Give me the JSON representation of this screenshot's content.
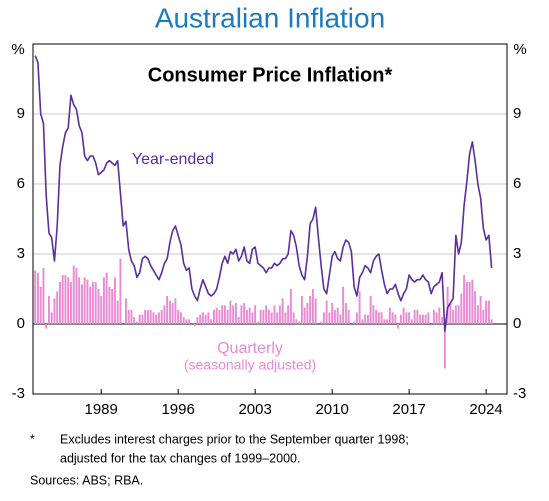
{
  "header": {
    "title": "Australian Inflation"
  },
  "chart_data": {
    "type": "bar_line",
    "title": "Consumer Price Inflation*",
    "y_unit": "%",
    "x": [
      1983,
      1983.25,
      1983.5,
      1983.75,
      1984,
      1984.25,
      1984.5,
      1984.75,
      1985,
      1985.25,
      1985.5,
      1985.75,
      1986,
      1986.25,
      1986.5,
      1986.75,
      1987,
      1987.25,
      1987.5,
      1987.75,
      1988,
      1988.25,
      1988.5,
      1988.75,
      1989,
      1989.25,
      1989.5,
      1989.75,
      1990,
      1990.25,
      1990.5,
      1990.75,
      1991,
      1991.25,
      1991.5,
      1991.75,
      1992,
      1992.25,
      1992.5,
      1992.75,
      1993,
      1993.25,
      1993.5,
      1993.75,
      1994,
      1994.25,
      1994.5,
      1994.75,
      1995,
      1995.25,
      1995.5,
      1995.75,
      1996,
      1996.25,
      1996.5,
      1996.75,
      1997,
      1997.25,
      1997.5,
      1997.75,
      1998,
      1998.25,
      1998.5,
      1998.75,
      1999,
      1999.25,
      1999.5,
      1999.75,
      2000,
      2000.25,
      2000.5,
      2000.75,
      2001,
      2001.25,
      2001.5,
      2001.75,
      2002,
      2002.25,
      2002.5,
      2002.75,
      2003,
      2003.25,
      2003.5,
      2003.75,
      2004,
      2004.25,
      2004.5,
      2004.75,
      2005,
      2005.25,
      2005.5,
      2005.75,
      2006,
      2006.25,
      2006.5,
      2006.75,
      2007,
      2007.25,
      2007.5,
      2007.75,
      2008,
      2008.25,
      2008.5,
      2008.75,
      2009,
      2009.25,
      2009.5,
      2009.75,
      2010,
      2010.25,
      2010.5,
      2010.75,
      2011,
      2011.25,
      2011.5,
      2011.75,
      2012,
      2012.25,
      2012.5,
      2012.75,
      2013,
      2013.25,
      2013.5,
      2013.75,
      2014,
      2014.25,
      2014.5,
      2014.75,
      2015,
      2015.25,
      2015.5,
      2015.75,
      2016,
      2016.25,
      2016.5,
      2016.75,
      2017,
      2017.25,
      2017.5,
      2017.75,
      2018,
      2018.25,
      2018.5,
      2018.75,
      2019,
      2019.25,
      2019.5,
      2019.75,
      2020,
      2020.25,
      2020.5,
      2020.75,
      2021,
      2021.25,
      2021.5,
      2021.75,
      2022,
      2022.25,
      2022.5,
      2022.75,
      2023,
      2023.25,
      2023.5,
      2023.75,
      2024,
      2024.25,
      2024.5
    ],
    "series": [
      {
        "name": "Quarterly",
        "sublabel": "(seasonally adjusted)",
        "kind": "bar",
        "color": "#e98ad3",
        "values": [
          2.3,
          2.2,
          1.6,
          2.4,
          -0.2,
          1.2,
          0.5,
          1.1,
          1.4,
          1.8,
          2.1,
          2.1,
          2.0,
          1.8,
          2.5,
          2.4,
          2.0,
          1.7,
          2.0,
          1.9,
          1.6,
          1.8,
          1.8,
          1.5,
          1.2,
          2.0,
          2.2,
          1.6,
          1.5,
          2.0,
          1.0,
          2.8,
          0.0,
          1.1,
          0.6,
          0.6,
          0.3,
          0.1,
          0.4,
          0.4,
          0.6,
          0.6,
          0.6,
          0.5,
          0.4,
          0.5,
          0.6,
          0.8,
          1.2,
          1.0,
          0.9,
          1.1,
          0.6,
          0.5,
          0.3,
          0.2,
          0.2,
          0.0,
          -0.1,
          0.3,
          0.4,
          0.5,
          0.4,
          0.5,
          0.2,
          0.6,
          0.7,
          0.6,
          0.8,
          0.8,
          0.6,
          1.0,
          0.8,
          0.9,
          0.3,
          0.8,
          0.9,
          0.6,
          0.7,
          0.5,
          0.8,
          0.1,
          0.6,
          0.6,
          0.8,
          0.6,
          0.5,
          0.8,
          0.5,
          0.8,
          1.1,
          0.5,
          0.8,
          1.5,
          0.5,
          0.2,
          0.1,
          1.2,
          0.7,
          0.9,
          1.2,
          1.5,
          1.1,
          0.0,
          0.1,
          0.5,
          1.0,
          0.5,
          0.9,
          0.6,
          0.7,
          0.4,
          1.6,
          0.9,
          0.6,
          0.0,
          0.1,
          0.5,
          1.4,
          0.2,
          0.4,
          0.4,
          1.2,
          0.8,
          0.6,
          0.5,
          0.5,
          0.2,
          0.2,
          0.7,
          0.5,
          0.4,
          -0.2,
          0.4,
          0.7,
          0.5,
          0.5,
          0.2,
          0.6,
          0.6,
          0.4,
          0.4,
          0.4,
          0.5,
          0.0,
          0.6,
          0.5,
          0.7,
          0.3,
          -1.9,
          1.6,
          0.9,
          0.6,
          0.8,
          0.8,
          1.3,
          2.1,
          1.8,
          1.8,
          1.9,
          1.4,
          0.8,
          1.2,
          0.6,
          1.0,
          1.0,
          0.2
        ]
      },
      {
        "name": "Year-ended",
        "kind": "line",
        "color": "#5b2d9e",
        "values": [
          11.5,
          11.2,
          9.0,
          8.6,
          5.5,
          3.9,
          3.7,
          2.7,
          4.2,
          6.8,
          7.6,
          8.2,
          8.4,
          9.8,
          9.4,
          9.2,
          8.5,
          8.2,
          7.2,
          7.0,
          7.2,
          7.2,
          6.9,
          6.4,
          6.5,
          6.6,
          6.9,
          7.0,
          6.9,
          6.8,
          7.0,
          5.6,
          4.2,
          4.4,
          3.2,
          2.7,
          2.5,
          2.0,
          2.2,
          2.8,
          2.9,
          2.8,
          2.5,
          2.3,
          2.1,
          1.9,
          2.2,
          2.6,
          2.8,
          3.5,
          4.0,
          4.2,
          3.8,
          3.4,
          2.6,
          2.3,
          2.4,
          1.5,
          1.2,
          1.0,
          1.5,
          1.9,
          1.6,
          1.3,
          1.2,
          1.3,
          1.5,
          2.0,
          2.6,
          2.9,
          2.6,
          3.1,
          3.0,
          3.2,
          2.7,
          2.9,
          3.3,
          2.7,
          2.6,
          3.2,
          3.3,
          2.6,
          2.5,
          2.4,
          2.2,
          2.4,
          2.4,
          2.6,
          2.5,
          2.6,
          2.8,
          2.8,
          3.0,
          4.0,
          3.8,
          3.3,
          2.5,
          2.1,
          1.9,
          2.9,
          4.3,
          4.5,
          5.0,
          3.7,
          2.5,
          1.5,
          1.3,
          2.1,
          2.9,
          3.1,
          2.8,
          2.7,
          3.3,
          3.6,
          3.5,
          3.1,
          1.6,
          1.2,
          2.0,
          2.2,
          2.5,
          2.4,
          2.2,
          2.7,
          2.9,
          3.0,
          2.3,
          1.7,
          1.3,
          1.5,
          1.5,
          1.7,
          1.3,
          1.0,
          1.3,
          1.5,
          2.1,
          1.9,
          1.8,
          1.9,
          1.9,
          2.1,
          1.9,
          1.8,
          1.3,
          1.6,
          1.7,
          1.8,
          2.2,
          -0.3,
          0.7,
          0.9,
          1.1,
          3.8,
          3.0,
          3.5,
          5.1,
          6.1,
          7.3,
          7.8,
          7.0,
          6.0,
          5.4,
          4.1,
          3.6,
          3.8,
          2.4
        ]
      }
    ],
    "xlim": [
      1982.8,
      2025.9
    ],
    "xticks": [
      1989,
      1996,
      2003,
      2010,
      2017,
      2024
    ],
    "ylim": [
      -3,
      12
    ],
    "yticks": [
      -3,
      0,
      3,
      6,
      9
    ],
    "grid": true
  },
  "footnotes": {
    "marker": "*",
    "lines": [
      "Excludes interest charges prior to the September quarter 1998;",
      "adjusted for the tax changes of 1999–2000."
    ],
    "sources": "Sources: ABS; RBA."
  }
}
